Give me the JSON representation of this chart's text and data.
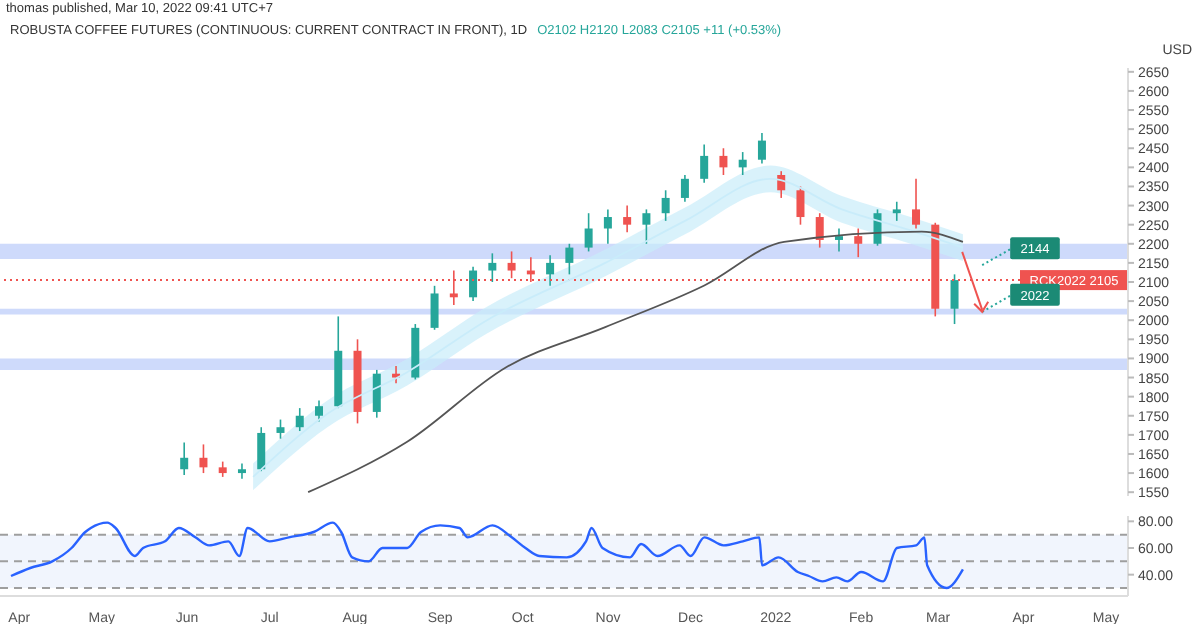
{
  "chart_data": [
    {
      "type": "candlestick",
      "title": "ROBUSTA COFFEE FUTURES (CONTINUOUS: CURRENT CONTRACT IN FRONT), 1D",
      "subtitle": "O2102 H2120 L2083 C2105 +11 (+0.53%)",
      "ylabel": "USD",
      "annotations": [
        "thomas published, Mar 10, 2022 09:41 UTC+7",
        {
          "text": "2144",
          "x": "2022-03-17",
          "y": 2144
        },
        {
          "text": "2022",
          "x": "2022-03-17",
          "y": 2022
        }
      ],
      "x": [
        "2021-05-31",
        "2021-06-07",
        "2021-06-14",
        "2021-06-21",
        "2021-06-28",
        "2021-07-05",
        "2021-07-12",
        "2021-07-19",
        "2021-07-26",
        "2021-08-02",
        "2021-08-09",
        "2021-08-16",
        "2021-08-23",
        "2021-08-30",
        "2021-09-06",
        "2021-09-13",
        "2021-09-20",
        "2021-09-27",
        "2021-10-04",
        "2021-10-11",
        "2021-10-18",
        "2021-10-25",
        "2021-11-01",
        "2021-11-08",
        "2021-11-15",
        "2021-11-22",
        "2021-11-29",
        "2021-12-06",
        "2021-12-13",
        "2021-12-20",
        "2021-12-27",
        "2022-01-03",
        "2022-01-10",
        "2022-01-17",
        "2022-01-24",
        "2022-01-31",
        "2022-02-07",
        "2022-02-14",
        "2022-02-21",
        "2022-02-28",
        "2022-03-07"
      ],
      "ohlc": [
        [
          1610,
          1680,
          1595,
          1640
        ],
        [
          1640,
          1675,
          1600,
          1615
        ],
        [
          1615,
          1630,
          1590,
          1600
        ],
        [
          1600,
          1625,
          1585,
          1610
        ],
        [
          1610,
          1720,
          1605,
          1705
        ],
        [
          1705,
          1740,
          1690,
          1720
        ],
        [
          1720,
          1770,
          1710,
          1750
        ],
        [
          1750,
          1790,
          1735,
          1775
        ],
        [
          1775,
          2010,
          1770,
          1920
        ],
        [
          1920,
          1950,
          1730,
          1760
        ],
        [
          1760,
          1870,
          1745,
          1860
        ],
        [
          1860,
          1880,
          1835,
          1850
        ],
        [
          1850,
          1990,
          1845,
          1980
        ],
        [
          1980,
          2090,
          1975,
          2070
        ],
        [
          2070,
          2130,
          2040,
          2060
        ],
        [
          2060,
          2140,
          2050,
          2130
        ],
        [
          2130,
          2175,
          2100,
          2150
        ],
        [
          2150,
          2180,
          2110,
          2130
        ],
        [
          2130,
          2165,
          2100,
          2120
        ],
        [
          2120,
          2170,
          2090,
          2150
        ],
        [
          2150,
          2200,
          2120,
          2190
        ],
        [
          2190,
          2280,
          2180,
          2240
        ],
        [
          2240,
          2290,
          2200,
          2270
        ],
        [
          2270,
          2300,
          2230,
          2250
        ],
        [
          2250,
          2290,
          2200,
          2280
        ],
        [
          2280,
          2340,
          2260,
          2320
        ],
        [
          2320,
          2380,
          2310,
          2370
        ],
        [
          2370,
          2460,
          2360,
          2430
        ],
        [
          2430,
          2450,
          2380,
          2400
        ],
        [
          2400,
          2440,
          2380,
          2420
        ],
        [
          2420,
          2490,
          2410,
          2470
        ],
        [
          2380,
          2390,
          2320,
          2340
        ],
        [
          2340,
          2350,
          2250,
          2270
        ],
        [
          2270,
          2280,
          2190,
          2210
        ],
        [
          2210,
          2240,
          2180,
          2220
        ],
        [
          2220,
          2240,
          2165,
          2200
        ],
        [
          2200,
          2290,
          2195,
          2280
        ],
        [
          2280,
          2310,
          2260,
          2290
        ],
        [
          2290,
          2370,
          2240,
          2250
        ],
        [
          2250,
          2255,
          2010,
          2030
        ],
        [
          2030,
          2120,
          1990,
          2105
        ]
      ],
      "colors": [
        "#26a69a",
        "#ef5350",
        "#ef5350",
        "#26a69a",
        "#26a69a",
        "#26a69a",
        "#26a69a",
        "#26a69a",
        "#26a69a",
        "#ef5350",
        "#26a69a",
        "#ef5350",
        "#26a69a",
        "#26a69a",
        "#ef5350",
        "#26a69a",
        "#26a69a",
        "#ef5350",
        "#ef5350",
        "#26a69a",
        "#26a69a",
        "#26a69a",
        "#26a69a",
        "#ef5350",
        "#26a69a",
        "#26a69a",
        "#26a69a",
        "#26a69a",
        "#ef5350",
        "#26a69a",
        "#26a69a",
        "#ef5350",
        "#ef5350",
        "#ef5350",
        "#26a69a",
        "#ef5350",
        "#26a69a",
        "#26a69a",
        "#ef5350",
        "#ef5350",
        "#26a69a"
      ],
      "series": [
        {
          "type": "line",
          "color": "#c9ecfa",
          "x": [
            "2021-06-25",
            "2021-07-22",
            "2021-08-20",
            "2021-09-18",
            "2021-10-31",
            "2021-11-29",
            "2021-12-30",
            "2022-01-25",
            "2022-02-19",
            "2022-03-10"
          ],
          "values": [
            1590,
            1755,
            1864,
            2000,
            2150,
            2260,
            2370,
            2290,
            2235,
            2190
          ],
          "lower": [
            1555,
            1720,
            1829,
            1965,
            2115,
            2225,
            2335,
            2255,
            2200,
            2155
          ],
          "upper": [
            1625,
            1790,
            1899,
            2035,
            2185,
            2295,
            2405,
            2325,
            2270,
            2225
          ]
        },
        {
          "type": "line",
          "color": "#555555",
          "x": [
            "2021-07-15",
            "2021-08-20",
            "2021-09-25",
            "2021-10-31",
            "2021-12-06",
            "2022-01-04",
            "2022-02-23",
            "2022-03-10"
          ],
          "values": [
            1550,
            1682,
            1877,
            1982,
            2091,
            2205,
            2232,
            2205
          ]
        }
      ],
      "bands": [
        {
          "axis": "y",
          "from": 2160,
          "to": 2200,
          "color": "#c5d3fa"
        },
        {
          "axis": "y",
          "from": 2015,
          "to": 2030,
          "color": "#c5d3fa"
        },
        {
          "axis": "y",
          "from": 1870,
          "to": 1900,
          "color": "#c5d3fa"
        }
      ],
      "ref_lines": [
        {
          "axis": "y",
          "value": 2105,
          "label": "RCK2022 2105",
          "color": "#ef5350",
          "line_style": "dotted"
        }
      ],
      "xlim": [
        "2021-03-25",
        "2022-05-09"
      ],
      "ylim": [
        1540,
        2660
      ],
      "yticks": [
        1550,
        1600,
        1650,
        1700,
        1750,
        1800,
        1850,
        1900,
        1950,
        2000,
        2050,
        2100,
        2150,
        2200,
        2250,
        2300,
        2350,
        2400,
        2450,
        2500,
        2550,
        2600,
        2650
      ],
      "tick_labels": "y"
    },
    {
      "type": "line",
      "series": [
        {
          "color": "#2962ff",
          "x": [
            "2021-03-29",
            "2021-04-05",
            "2021-04-13",
            "2021-04-20",
            "2021-04-25",
            "2021-04-27",
            "2021-05-03",
            "2021-05-06",
            "2021-05-13",
            "2021-05-16",
            "2021-05-24",
            "2021-05-29",
            "2021-06-04",
            "2021-06-09",
            "2021-06-16",
            "2021-06-20",
            "2021-06-23",
            "2021-07-01",
            "2021-07-08",
            "2021-07-17",
            "2021-07-24",
            "2021-07-27",
            "2021-07-31",
            "2021-08-06",
            "2021-08-11",
            "2021-08-20",
            "2021-08-25",
            "2021-09-01",
            "2021-09-08",
            "2021-09-11",
            "2021-09-20",
            "2021-09-27",
            "2021-10-02",
            "2021-10-07",
            "2021-10-17",
            "2021-10-24",
            "2021-10-26",
            "2021-10-30",
            "2021-11-09",
            "2021-11-13",
            "2021-11-19",
            "2021-11-27",
            "2021-12-01",
            "2021-12-06",
            "2021-12-13",
            "2021-12-20",
            "2021-12-26",
            "2021-12-27",
            "2022-01-02",
            "2022-01-09",
            "2022-01-13",
            "2022-01-18",
            "2022-01-23",
            "2022-01-27",
            "2022-02-01",
            "2022-02-09",
            "2022-02-14",
            "2022-02-21",
            "2022-02-24",
            "2022-02-25",
            "2022-03-04",
            "2022-03-10"
          ],
          "values": [
            39,
            45,
            50,
            60,
            72,
            75,
            79,
            75,
            54,
            60,
            65,
            75,
            68,
            62,
            65,
            54,
            75,
            65,
            68,
            72,
            79,
            72,
            53,
            50,
            60,
            60,
            72,
            77,
            75,
            68,
            77,
            68,
            60,
            54,
            53,
            65,
            75,
            60,
            53,
            63,
            54,
            62,
            54,
            68,
            62,
            65,
            68,
            47,
            53,
            42,
            39,
            35,
            38,
            35,
            42,
            35,
            60,
            62,
            68,
            47,
            30,
            44
          ]
        }
      ],
      "bands": [
        {
          "axis": "y",
          "from": 30,
          "to": 70,
          "color": "#eef3fd"
        }
      ],
      "ref_lines": [
        {
          "axis": "y",
          "value": 30,
          "color": "#9e9e9e",
          "line_style": "dashed"
        },
        {
          "axis": "y",
          "value": 50,
          "color": "#9e9e9e",
          "line_style": "dashed"
        },
        {
          "axis": "y",
          "value": 70,
          "color": "#9e9e9e",
          "line_style": "dashed"
        }
      ],
      "xlim": [
        "2021-03-25",
        "2022-05-09"
      ],
      "xticks": [
        {
          "value": "2021-04-01",
          "label": "Apr"
        },
        {
          "value": "2021-05-01",
          "label": "May"
        },
        {
          "value": "2021-06-01",
          "label": "Jun"
        },
        {
          "value": "2021-07-01",
          "label": "Jul"
        },
        {
          "value": "2021-08-01",
          "label": "Aug"
        },
        {
          "value": "2021-09-01",
          "label": "Sep"
        },
        {
          "value": "2021-10-01",
          "label": "Oct"
        },
        {
          "value": "2021-11-01",
          "label": "Nov"
        },
        {
          "value": "2021-12-01",
          "label": "Dec"
        },
        {
          "value": "2022-01-01",
          "label": "2022"
        },
        {
          "value": "2022-02-01",
          "label": "Feb"
        },
        {
          "value": "2022-03-01",
          "label": "Mar"
        },
        {
          "value": "2022-04-01",
          "label": "Apr"
        },
        {
          "value": "2022-05-01",
          "label": "May"
        }
      ],
      "ylim": [
        24,
        84
      ],
      "yticks": [
        {
          "value": 40,
          "label": "40.00"
        },
        {
          "value": 60,
          "label": "60.00"
        },
        {
          "value": 80,
          "label": "80.00"
        }
      ]
    }
  ]
}
